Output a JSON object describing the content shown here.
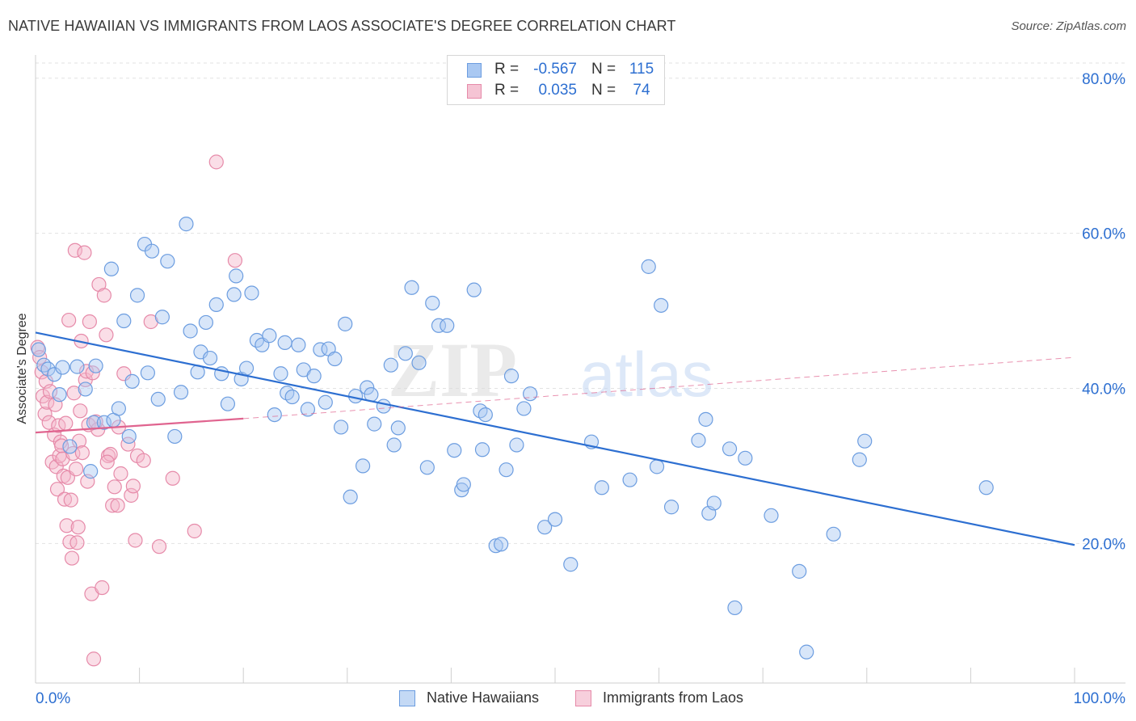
{
  "title": "NATIVE HAWAIIAN VS IMMIGRANTS FROM LAOS ASSOCIATE'S DEGREE CORRELATION CHART",
  "source": "Source: ZipAtlas.com",
  "watermark": {
    "zip": "ZIP",
    "atlas": "atlas"
  },
  "legend": {
    "rows": [
      {
        "r_label": "R =",
        "r_value": "-0.567",
        "n_label": "N =",
        "n_value": "115"
      },
      {
        "r_label": "R =",
        "r_value": "0.035",
        "n_label": "N =",
        "n_value": "74"
      }
    ]
  },
  "bottom_legend": [
    "Native Hawaiians",
    "Immigrants from Laos"
  ],
  "colors": {
    "blue_fill": "#a9c8f2",
    "blue_stroke": "#6c9de0",
    "blue_line": "#2d6fd1",
    "pink_fill": "#f5b6ca",
    "pink_stroke": "#e68aa9",
    "pink_line": "#e0648f",
    "tick_label": "#2d6fd1",
    "grid": "#e2e2e2"
  },
  "chart_data": {
    "type": "scatter",
    "title": "NATIVE HAWAIIAN VS IMMIGRANTS FROM LAOS ASSOCIATE'S DEGREE CORRELATION CHART",
    "xlabel": "",
    "ylabel": "Associate's Degree",
    "xlim": [
      0,
      100
    ],
    "ylim": [
      2,
      83
    ],
    "x_tick_labels": [
      "0.0%",
      "100.0%"
    ],
    "y_ticks": [
      20,
      40,
      60,
      80
    ],
    "y_tick_labels": [
      "20.0%",
      "40.0%",
      "60.0%",
      "80.0%"
    ],
    "grid": true,
    "legend_position": "top-center",
    "series": [
      {
        "name": "Native Hawaiians",
        "color": "#a9c8f2",
        "trend": {
          "x": [
            0,
            100
          ],
          "y": [
            47.2,
            19.8
          ],
          "style": "solid",
          "color": "#2d6fd1"
        },
        "points": [
          [
            0.3,
            45.0
          ],
          [
            0.8,
            43.0
          ],
          [
            1.2,
            42.5
          ],
          [
            1.8,
            41.8
          ],
          [
            2.3,
            39.2
          ],
          [
            2.6,
            42.7
          ],
          [
            3.3,
            32.5
          ],
          [
            4.0,
            42.8
          ],
          [
            4.8,
            39.9
          ],
          [
            5.3,
            29.3
          ],
          [
            5.6,
            35.6
          ],
          [
            5.8,
            42.9
          ],
          [
            6.6,
            35.6
          ],
          [
            7.3,
            55.4
          ],
          [
            7.5,
            35.9
          ],
          [
            8.0,
            37.4
          ],
          [
            8.5,
            48.7
          ],
          [
            9.0,
            33.8
          ],
          [
            9.3,
            40.9
          ],
          [
            9.8,
            52.0
          ],
          [
            10.5,
            58.6
          ],
          [
            10.8,
            42.0
          ],
          [
            11.2,
            57.7
          ],
          [
            11.8,
            38.6
          ],
          [
            12.2,
            49.2
          ],
          [
            12.7,
            56.4
          ],
          [
            13.4,
            33.8
          ],
          [
            14.0,
            39.5
          ],
          [
            14.5,
            61.2
          ],
          [
            14.9,
            47.4
          ],
          [
            15.6,
            42.1
          ],
          [
            15.9,
            44.7
          ],
          [
            16.4,
            48.5
          ],
          [
            16.8,
            43.9
          ],
          [
            17.4,
            50.8
          ],
          [
            17.9,
            41.9
          ],
          [
            18.5,
            38.0
          ],
          [
            19.1,
            52.1
          ],
          [
            19.3,
            54.5
          ],
          [
            19.8,
            41.2
          ],
          [
            20.3,
            42.6
          ],
          [
            20.8,
            52.3
          ],
          [
            21.3,
            46.2
          ],
          [
            21.8,
            45.6
          ],
          [
            22.5,
            46.8
          ],
          [
            23.0,
            36.6
          ],
          [
            23.6,
            41.9
          ],
          [
            24.0,
            45.9
          ],
          [
            24.2,
            39.4
          ],
          [
            24.7,
            38.9
          ],
          [
            25.3,
            45.6
          ],
          [
            25.8,
            42.4
          ],
          [
            26.2,
            37.3
          ],
          [
            26.8,
            41.6
          ],
          [
            27.4,
            45.0
          ],
          [
            27.9,
            38.2
          ],
          [
            28.2,
            45.1
          ],
          [
            28.8,
            43.8
          ],
          [
            29.4,
            35.0
          ],
          [
            29.8,
            48.3
          ],
          [
            30.3,
            26.0
          ],
          [
            30.8,
            39.0
          ],
          [
            31.5,
            30.0
          ],
          [
            31.9,
            40.1
          ],
          [
            32.3,
            39.2
          ],
          [
            32.6,
            35.4
          ],
          [
            33.5,
            37.7
          ],
          [
            34.2,
            43.0
          ],
          [
            34.5,
            32.7
          ],
          [
            34.9,
            34.9
          ],
          [
            35.6,
            44.5
          ],
          [
            36.2,
            53.0
          ],
          [
            36.9,
            43.3
          ],
          [
            37.7,
            29.8
          ],
          [
            38.2,
            51.0
          ],
          [
            38.8,
            48.1
          ],
          [
            39.6,
            48.1
          ],
          [
            40.3,
            32.0
          ],
          [
            41.0,
            26.9
          ],
          [
            41.2,
            27.6
          ],
          [
            42.2,
            52.7
          ],
          [
            42.8,
            37.1
          ],
          [
            43.0,
            32.1
          ],
          [
            43.3,
            36.6
          ],
          [
            44.3,
            19.7
          ],
          [
            44.8,
            19.9
          ],
          [
            45.3,
            29.5
          ],
          [
            45.8,
            41.6
          ],
          [
            46.3,
            32.7
          ],
          [
            47.0,
            37.4
          ],
          [
            47.6,
            39.3
          ],
          [
            49.0,
            22.1
          ],
          [
            50.0,
            23.1
          ],
          [
            51.5,
            17.3
          ],
          [
            53.5,
            33.1
          ],
          [
            54.5,
            27.2
          ],
          [
            57.2,
            28.2
          ],
          [
            59.0,
            55.7
          ],
          [
            59.8,
            29.9
          ],
          [
            60.2,
            50.7
          ],
          [
            61.2,
            24.7
          ],
          [
            63.8,
            33.3
          ],
          [
            64.5,
            36.0
          ],
          [
            64.8,
            23.9
          ],
          [
            65.3,
            25.2
          ],
          [
            66.8,
            32.2
          ],
          [
            68.3,
            31.0
          ],
          [
            70.8,
            23.6
          ],
          [
            73.5,
            16.4
          ],
          [
            74.2,
            6.0
          ],
          [
            76.8,
            21.2
          ],
          [
            79.3,
            30.8
          ],
          [
            79.8,
            33.2
          ],
          [
            91.5,
            27.2
          ],
          [
            67.3,
            11.7
          ]
        ]
      },
      {
        "name": "Immigrants from Laos",
        "color": "#f5b6ca",
        "trend": {
          "x": [
            0,
            20
          ],
          "y": [
            34.3,
            36.1
          ],
          "style": "solid",
          "dashed_extension": {
            "x": [
              20,
              100
            ],
            "y": [
              36.1,
              44.0
            ]
          },
          "color": "#e0648f"
        },
        "points": [
          [
            0.2,
            45.3
          ],
          [
            0.4,
            44.0
          ],
          [
            0.6,
            42.1
          ],
          [
            0.7,
            39.0
          ],
          [
            0.9,
            36.7
          ],
          [
            1.0,
            40.9
          ],
          [
            1.1,
            38.2
          ],
          [
            1.3,
            35.6
          ],
          [
            1.4,
            39.6
          ],
          [
            1.6,
            30.5
          ],
          [
            1.8,
            34.0
          ],
          [
            1.9,
            37.9
          ],
          [
            2.0,
            29.9
          ],
          [
            2.1,
            27.0
          ],
          [
            2.2,
            35.2
          ],
          [
            2.3,
            31.3
          ],
          [
            2.4,
            33.1
          ],
          [
            2.5,
            32.6
          ],
          [
            2.6,
            30.9
          ],
          [
            2.7,
            28.7
          ],
          [
            2.8,
            25.7
          ],
          [
            2.9,
            35.5
          ],
          [
            3.0,
            22.3
          ],
          [
            3.1,
            28.5
          ],
          [
            3.2,
            48.8
          ],
          [
            3.3,
            20.2
          ],
          [
            3.4,
            25.6
          ],
          [
            3.5,
            18.1
          ],
          [
            3.6,
            31.6
          ],
          [
            3.7,
            39.4
          ],
          [
            3.8,
            57.8
          ],
          [
            3.9,
            29.6
          ],
          [
            4.0,
            20.1
          ],
          [
            4.1,
            22.1
          ],
          [
            4.2,
            33.2
          ],
          [
            4.3,
            37.1
          ],
          [
            4.4,
            46.1
          ],
          [
            4.5,
            31.7
          ],
          [
            4.7,
            57.5
          ],
          [
            4.8,
            41.1
          ],
          [
            4.9,
            42.2
          ],
          [
            5.0,
            28.0
          ],
          [
            5.1,
            35.3
          ],
          [
            5.2,
            48.6
          ],
          [
            5.4,
            13.5
          ],
          [
            5.5,
            42.0
          ],
          [
            5.6,
            5.1
          ],
          [
            6.0,
            34.7
          ],
          [
            6.1,
            53.4
          ],
          [
            6.4,
            14.3
          ],
          [
            6.6,
            52.0
          ],
          [
            6.8,
            46.9
          ],
          [
            7.0,
            31.3
          ],
          [
            7.2,
            31.5
          ],
          [
            7.4,
            24.9
          ],
          [
            7.6,
            27.3
          ],
          [
            7.9,
            24.9
          ],
          [
            8.2,
            29.0
          ],
          [
            8.5,
            41.9
          ],
          [
            8.9,
            32.8
          ],
          [
            9.2,
            26.2
          ],
          [
            9.4,
            27.4
          ],
          [
            9.6,
            20.4
          ],
          [
            9.8,
            31.3
          ],
          [
            10.4,
            30.7
          ],
          [
            11.1,
            48.6
          ],
          [
            11.9,
            19.6
          ],
          [
            13.2,
            28.4
          ],
          [
            15.3,
            21.6
          ],
          [
            17.4,
            69.2
          ],
          [
            19.2,
            56.5
          ],
          [
            8.0,
            35.0
          ],
          [
            5.8,
            35.7
          ],
          [
            6.9,
            30.5
          ]
        ]
      }
    ]
  }
}
